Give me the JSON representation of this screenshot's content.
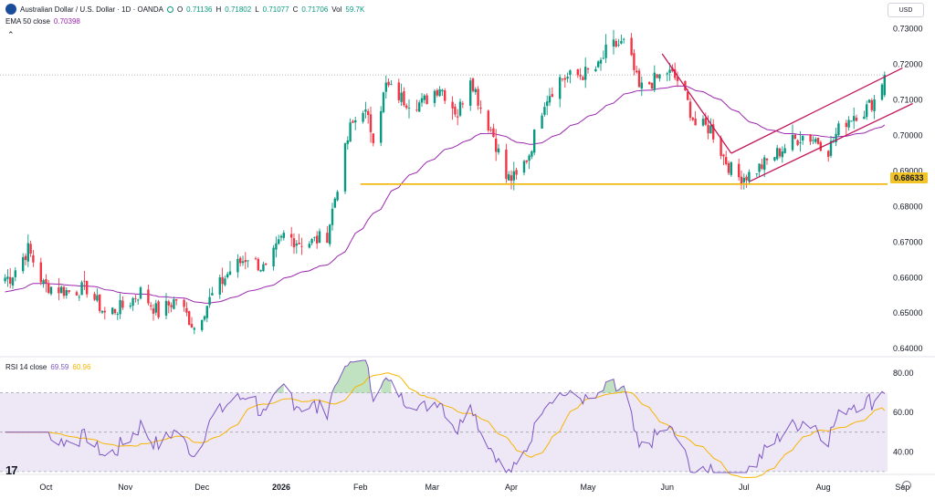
{
  "header": {
    "symbol_title": "Australian Dollar / U.S. Dollar · 1D · OANDA",
    "o_label": "O",
    "o_value": "0.71136",
    "h_label": "H",
    "h_value": "0.71802",
    "l_label": "L",
    "l_value": "0.71077",
    "c_label": "C",
    "c_value": "0.71706",
    "vol_label": "Vol",
    "vol_value": "59.7K",
    "currency": "USD"
  },
  "ema_legend": {
    "label": "EMA 50 close",
    "value": "0.70398"
  },
  "rsi_legend": {
    "label": "RSI 14 close",
    "value": "69.59",
    "ma_value": "60.96"
  },
  "price_badge": "0.68633",
  "colors": {
    "up": "#089981",
    "down": "#f23645",
    "ema": "#9c27b0",
    "rsi": "#7e57c2",
    "rsi_ma": "#f7b500",
    "support": "#f0b400",
    "channel": "#c2185b",
    "rsi_band": "#ede7f6"
  },
  "icons": {
    "collapse": "chevron-up-icon",
    "settings": "gear-icon",
    "logo": "tradingview-logo"
  },
  "chart_data": [
    {
      "type": "candlestick",
      "title": "Australian Dollar / U.S. Dollar · 1D · OANDA",
      "x_ticks": [
        "Oct",
        "Nov",
        "Dec",
        "2026",
        "Feb",
        "Mar",
        "Apr",
        "May",
        "Jun",
        "Jul",
        "Aug",
        "Sep"
      ],
      "y_ticks": [
        "0.64000",
        "0.65000",
        "0.66000",
        "0.67000",
        "0.68000",
        "0.69000",
        "0.70000",
        "0.71000",
        "0.72000",
        "0.73000"
      ],
      "ylim": [
        0.6385,
        0.7325
      ],
      "anchors": [
        [
          "2025-09-17",
          0.66
        ],
        [
          "2025-09-24",
          0.668
        ],
        [
          "2025-09-30",
          0.658
        ],
        [
          "2025-10-10",
          0.656
        ],
        [
          "2025-10-17",
          0.657
        ],
        [
          "2025-10-24",
          0.65
        ],
        [
          "2025-11-01",
          0.652
        ],
        [
          "2025-11-07",
          0.656
        ],
        [
          "2025-11-14",
          0.65
        ],
        [
          "2025-11-21",
          0.654
        ],
        [
          "2025-11-28",
          0.646
        ],
        [
          "2025-12-05",
          0.655
        ],
        [
          "2025-12-12",
          0.662
        ],
        [
          "2025-12-19",
          0.666
        ],
        [
          "2025-12-26",
          0.662
        ],
        [
          "2026-01-02",
          0.672
        ],
        [
          "2026-01-08",
          0.67
        ],
        [
          "2026-01-13",
          0.67
        ],
        [
          "2026-01-19",
          0.672
        ],
        [
          "2026-01-23",
          0.686
        ],
        [
          "2026-01-28",
          0.702
        ],
        [
          "2026-02-02",
          0.708
        ],
        [
          "2026-02-06",
          0.7
        ],
        [
          "2026-02-11",
          0.714
        ],
        [
          "2026-02-18",
          0.71
        ],
        [
          "2026-02-25",
          0.709
        ],
        [
          "2026-03-04",
          0.714
        ],
        [
          "2026-03-11",
          0.706
        ],
        [
          "2026-03-16",
          0.717
        ],
        [
          "2026-03-20",
          0.708
        ],
        [
          "2026-03-25",
          0.7
        ],
        [
          "2026-03-30",
          0.688
        ],
        [
          "2026-04-03",
          0.688
        ],
        [
          "2026-04-08",
          0.695
        ],
        [
          "2026-04-14",
          0.71
        ],
        [
          "2026-04-20",
          0.716
        ],
        [
          "2026-04-28",
          0.717
        ],
        [
          "2026-05-05",
          0.719
        ],
        [
          "2026-05-09",
          0.725
        ],
        [
          "2026-05-16",
          0.726
        ],
        [
          "2026-05-21",
          0.713
        ],
        [
          "2026-05-28",
          0.716
        ],
        [
          "2026-06-01",
          0.718
        ],
        [
          "2026-06-06",
          0.715
        ],
        [
          "2026-06-12",
          0.703
        ],
        [
          "2026-06-18",
          0.702
        ],
        [
          "2026-06-23",
          0.694
        ],
        [
          "2026-06-28",
          0.688
        ],
        [
          "2026-07-03",
          0.689
        ],
        [
          "2026-07-09",
          0.692
        ],
        [
          "2026-07-14",
          0.695
        ],
        [
          "2026-07-19",
          0.698
        ],
        [
          "2026-07-24",
          0.7
        ],
        [
          "2026-07-29",
          0.699
        ],
        [
          "2026-08-03",
          0.696
        ],
        [
          "2026-08-08",
          0.703
        ],
        [
          "2026-08-13",
          0.706
        ],
        [
          "2026-08-17",
          0.707
        ],
        [
          "2026-08-21",
          0.71
        ],
        [
          "2026-08-25",
          0.7171
        ]
      ],
      "last_candle": {
        "o": 0.71136,
        "h": 0.71802,
        "l": 0.71077,
        "c": 0.71706
      },
      "ema_period": 50,
      "ema_last": 0.70398,
      "annotations": [
        {
          "type": "horizontal_line",
          "y": 0.68633,
          "from": "2026-02-01",
          "label": "0.68633"
        },
        {
          "type": "trendline",
          "from": [
            "2026-05-30",
            0.723
          ],
          "to": [
            "2026-06-26",
            0.695
          ]
        },
        {
          "type": "trendline",
          "from": [
            "2026-06-26",
            0.695
          ],
          "to": [
            "2026-09-01",
            0.719
          ]
        },
        {
          "type": "trendline",
          "from": [
            "2026-07-03",
            0.687
          ],
          "to": [
            "2026-09-05",
            0.709
          ]
        }
      ]
    },
    {
      "type": "line",
      "title": "RSI 14 close",
      "y_ticks": [
        "40.00",
        "60.00",
        "80.00"
      ],
      "ylim": [
        29.5,
        86.5
      ],
      "bands": [
        30,
        50,
        70
      ],
      "rsi_last": 69.59,
      "ma_last": 60.96
    }
  ]
}
